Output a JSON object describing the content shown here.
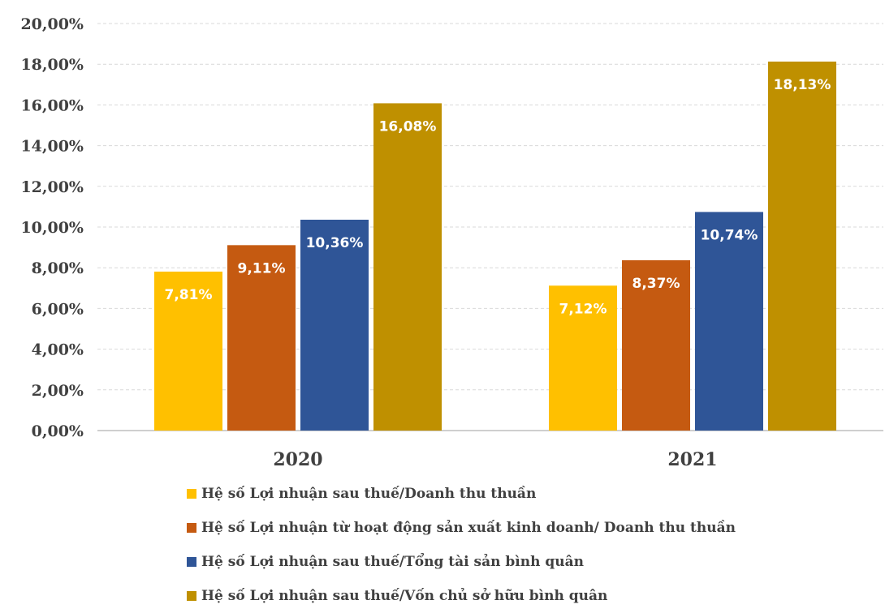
{
  "chart_data": {
    "type": "bar",
    "title": "",
    "xlabel": "",
    "ylabel": "",
    "categories": [
      "2020",
      "2021"
    ],
    "ylim": [
      0,
      20
    ],
    "yticks": [
      "0,00%",
      "2,00%",
      "4,00%",
      "6,00%",
      "8,00%",
      "10,00%",
      "12,00%",
      "14,00%",
      "16,00%",
      "18,00%",
      "20,00%"
    ],
    "grid": true,
    "legend_position": "bottom",
    "series": [
      {
        "name": "Hệ số Lợi nhuận sau thuế/Doanh thu thuần",
        "color": "#FFC000",
        "values": [
          7.81,
          7.12
        ],
        "labels": [
          "7,81%",
          "7,12%"
        ]
      },
      {
        "name": "Hệ số Lợi nhuận từ hoạt động sản xuất kinh doanh/ Doanh thu thuần",
        "color": "#C55A11",
        "values": [
          9.11,
          8.37
        ],
        "labels": [
          "9,11%",
          "8,37%"
        ]
      },
      {
        "name": "Hệ số Lợi nhuận sau thuế/Tổng tài sản bình quân",
        "color": "#2F5597",
        "values": [
          10.36,
          10.74
        ],
        "labels": [
          "10,36%",
          "10,74%"
        ]
      },
      {
        "name": "Hệ số Lợi nhuận sau thuế/Vốn chủ sở hữu bình quân",
        "color": "#BF9000",
        "values": [
          16.08,
          18.13
        ],
        "labels": [
          "16,08%",
          "18,13%"
        ]
      }
    ]
  }
}
